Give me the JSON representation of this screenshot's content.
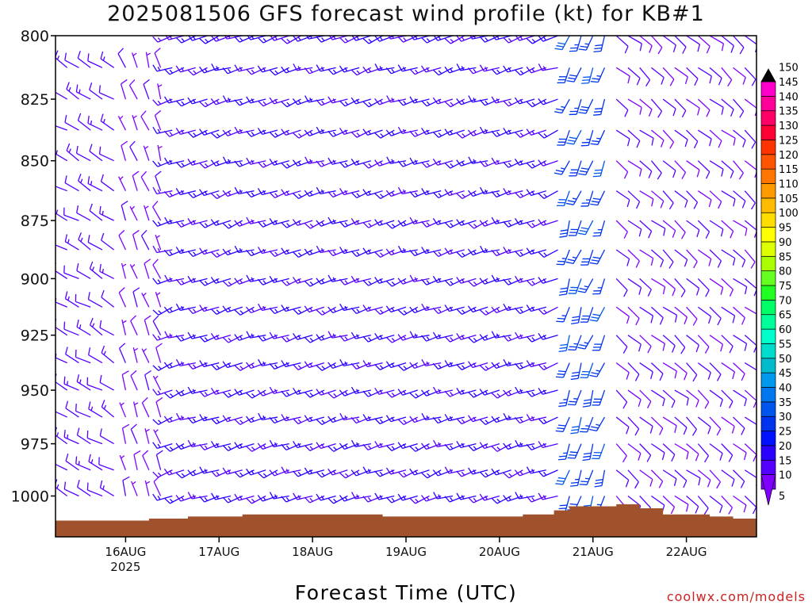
{
  "title": "2025081506 GFS forecast wind profile (kt) for KB#1",
  "credit": "coolwx.com/models",
  "chart_data": {
    "type": "wind-barb-profile",
    "title": "2025081506 GFS forecast wind profile (kt) for KB#1",
    "xlabel": "Forecast Time (UTC)",
    "ylabel": "",
    "y_scale": "pressure (inverted, hPa)",
    "ylim": [
      1020,
      800
    ],
    "y_ticks": [
      800,
      825,
      850,
      875,
      900,
      925,
      950,
      975,
      1000
    ],
    "x_ticks": [
      {
        "label": "16AUG",
        "sublabel": "2025",
        "hour": 18
      },
      {
        "label": "17AUG",
        "sublabel": "",
        "hour": 42
      },
      {
        "label": "18AUG",
        "sublabel": "",
        "hour": 66
      },
      {
        "label": "19AUG",
        "sublabel": "",
        "hour": 90
      },
      {
        "label": "20AUG",
        "sublabel": "",
        "hour": 114
      },
      {
        "label": "21AUG",
        "sublabel": "",
        "hour": 138
      },
      {
        "label": "22AUG",
        "sublabel": "",
        "hour": 162
      }
    ],
    "xlim_hours": [
      0,
      180
    ],
    "colorbar": {
      "unit": "kt",
      "levels": [
        5,
        10,
        15,
        20,
        25,
        30,
        35,
        40,
        45,
        50,
        55,
        60,
        65,
        70,
        75,
        80,
        85,
        90,
        95,
        100,
        105,
        110,
        115,
        120,
        125,
        130,
        135,
        140,
        145,
        150
      ],
      "colors": [
        "#7f00ff",
        "#5500ff",
        "#2a00ff",
        "#0011ff",
        "#0033ee",
        "#0055ee",
        "#0077ee",
        "#0099ee",
        "#00bbcc",
        "#00ddcc",
        "#00ffcc",
        "#00ff99",
        "#00ff66",
        "#22ff22",
        "#66ff22",
        "#aaff00",
        "#ddff00",
        "#ffff00",
        "#ffdd00",
        "#ffbb00",
        "#ff9900",
        "#ff7700",
        "#ff5500",
        "#ff3300",
        "#ff0033",
        "#ff0066",
        "#ff0099",
        "#ff00cc",
        "#ff00ff",
        "#000000"
      ]
    },
    "terrain_pressure_profile": [
      {
        "hour": 0,
        "p": 1012
      },
      {
        "hour": 10,
        "p": 1012
      },
      {
        "hour": 24,
        "p": 1011
      },
      {
        "hour": 34,
        "p": 1010
      },
      {
        "hour": 48,
        "p": 1009
      },
      {
        "hour": 60,
        "p": 1009
      },
      {
        "hour": 72,
        "p": 1009
      },
      {
        "hour": 84,
        "p": 1010
      },
      {
        "hour": 96,
        "p": 1010
      },
      {
        "hour": 108,
        "p": 1010
      },
      {
        "hour": 120,
        "p": 1009
      },
      {
        "hour": 128,
        "p": 1007
      },
      {
        "hour": 132,
        "p": 1005
      },
      {
        "hour": 138,
        "p": 1005
      },
      {
        "hour": 144,
        "p": 1004
      },
      {
        "hour": 150,
        "p": 1006
      },
      {
        "hour": 156,
        "p": 1009
      },
      {
        "hour": 168,
        "p": 1010
      },
      {
        "hour": 174,
        "p": 1011
      },
      {
        "hour": 180,
        "p": 1012
      }
    ],
    "wind_regimes": [
      {
        "hours": [
          0,
          18
        ],
        "direction_deg": 300,
        "speed_kt": 12
      },
      {
        "hours": [
          18,
          30
        ],
        "direction_deg": 340,
        "speed_kt": 8
      },
      {
        "hours": [
          30,
          132
        ],
        "direction_deg": 250,
        "speed_kt": 15
      },
      {
        "hours": [
          132,
          144
        ],
        "direction_deg": 200,
        "speed_kt": 28
      },
      {
        "hours": [
          144,
          180
        ],
        "direction_deg": 130,
        "speed_kt": 10
      }
    ]
  }
}
